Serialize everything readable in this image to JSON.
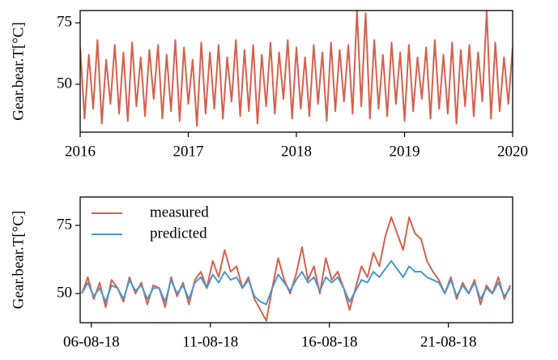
{
  "chart_data": [
    {
      "type": "line",
      "y_label": "Gear.bear.T[°C]",
      "x": [
        2016.0,
        2016.04,
        2016.08,
        2016.12,
        2016.16,
        2016.2,
        2016.24,
        2016.28,
        2016.32,
        2016.36,
        2016.4,
        2016.44,
        2016.48,
        2016.52,
        2016.56,
        2016.6,
        2016.64,
        2016.68,
        2016.72,
        2016.76,
        2016.8,
        2016.84,
        2016.88,
        2016.92,
        2016.96,
        2017.0,
        2017.04,
        2017.08,
        2017.12,
        2017.16,
        2017.2,
        2017.24,
        2017.28,
        2017.32,
        2017.36,
        2017.4,
        2017.44,
        2017.48,
        2017.52,
        2017.56,
        2017.6,
        2017.64,
        2017.68,
        2017.72,
        2017.76,
        2017.8,
        2017.84,
        2017.88,
        2017.92,
        2017.96,
        2018.0,
        2018.04,
        2018.08,
        2018.12,
        2018.16,
        2018.2,
        2018.24,
        2018.28,
        2018.32,
        2018.36,
        2018.4,
        2018.44,
        2018.48,
        2018.52,
        2018.56,
        2018.6,
        2018.64,
        2018.68,
        2018.72,
        2018.76,
        2018.8,
        2018.84,
        2018.88,
        2018.92,
        2018.96,
        2019.0,
        2019.04,
        2019.08,
        2019.12,
        2019.16,
        2019.2,
        2019.24,
        2019.28,
        2019.32,
        2019.36,
        2019.4,
        2019.44,
        2019.48,
        2019.52,
        2019.56,
        2019.6,
        2019.64,
        2019.68,
        2019.72,
        2019.76,
        2019.8,
        2019.84,
        2019.88,
        2019.92,
        2019.96,
        2020.0
      ],
      "series": [
        {
          "color": "#d6604d",
          "values": [
            65,
            36,
            62,
            40,
            68,
            34,
            60,
            42,
            66,
            38,
            63,
            35,
            67,
            41,
            61,
            37,
            64,
            44,
            66,
            36,
            62,
            39,
            68,
            35,
            65,
            42,
            60,
            33,
            67,
            38,
            63,
            40,
            66,
            36,
            61,
            43,
            68,
            37,
            64,
            39,
            66,
            34,
            62,
            41,
            67,
            38,
            63,
            44,
            68,
            36,
            65,
            40,
            61,
            37,
            66,
            42,
            63,
            35,
            67,
            39,
            64,
            43,
            66,
            38,
            80,
            41,
            79,
            36,
            68,
            40,
            62,
            37,
            67,
            42,
            63,
            35,
            66,
            39,
            61,
            44,
            65,
            36,
            68,
            40,
            62,
            38,
            67,
            34,
            64,
            41,
            66,
            37,
            63,
            43,
            80,
            36,
            67,
            39,
            61,
            42,
            65
          ]
        }
      ],
      "xlim": [
        2016,
        2020
      ],
      "xticks": [
        2016,
        2017,
        2018,
        2019,
        2020
      ],
      "ylim": [
        30.5,
        80
      ],
      "yticks": [
        50,
        75
      ]
    },
    {
      "type": "line",
      "y_label": "Gear.bear.T[°C]",
      "x": [
        5.6,
        5.85,
        6.1,
        6.35,
        6.6,
        6.85,
        7.1,
        7.35,
        7.6,
        7.85,
        8.1,
        8.35,
        8.6,
        8.85,
        9.1,
        9.35,
        9.6,
        9.85,
        10.1,
        10.35,
        10.6,
        10.85,
        11.1,
        11.35,
        11.6,
        11.85,
        12.1,
        12.35,
        12.6,
        12.85,
        13.1,
        13.35,
        13.6,
        13.85,
        14.1,
        14.35,
        14.6,
        14.85,
        15.1,
        15.35,
        15.6,
        15.85,
        16.1,
        16.35,
        16.6,
        16.85,
        17.1,
        17.35,
        17.6,
        17.85,
        18.1,
        18.35,
        18.6,
        18.85,
        19.1,
        19.35,
        19.6,
        19.85,
        20.1,
        20.35,
        20.6,
        20.85,
        21.1,
        21.35,
        21.6,
        21.85,
        22.1,
        22.35,
        22.6,
        22.85,
        23.1,
        23.35,
        23.6
      ],
      "series": [
        {
          "name": "measured",
          "color": "#d6604d",
          "values": [
            50,
            56,
            48,
            54,
            45,
            55,
            52,
            47,
            56,
            50,
            54,
            46,
            53,
            52,
            45,
            56,
            49,
            54,
            46,
            55,
            58,
            52,
            62,
            56,
            66,
            58,
            60,
            52,
            56,
            48,
            44,
            40,
            52,
            63,
            55,
            50,
            57,
            67,
            55,
            60,
            50,
            63,
            55,
            58,
            52,
            44,
            52,
            60,
            56,
            65,
            60,
            71,
            78,
            72,
            66,
            78,
            72,
            70,
            62,
            58,
            55,
            50,
            56,
            48,
            54,
            50,
            55,
            46,
            53,
            50,
            56,
            48,
            53
          ]
        },
        {
          "name": "predicted",
          "color": "#4a98c9",
          "values": [
            50,
            54,
            49,
            52,
            47,
            53,
            52,
            48,
            55,
            51,
            53,
            48,
            52,
            52,
            47,
            55,
            50,
            53,
            48,
            54,
            56,
            52,
            57,
            54,
            58,
            55,
            56,
            52,
            55,
            49,
            47,
            46,
            52,
            57,
            54,
            51,
            55,
            58,
            54,
            56,
            51,
            56,
            54,
            56,
            52,
            47,
            51,
            55,
            54,
            58,
            56,
            59,
            62,
            59,
            56,
            60,
            58,
            58,
            56,
            55,
            54,
            50,
            55,
            49,
            53,
            50,
            54,
            48,
            52,
            50,
            54,
            49,
            52
          ]
        }
      ],
      "xlim": [
        5.53,
        23.7
      ],
      "xticks": [
        {
          "value": 6,
          "label": "06-08-18"
        },
        {
          "value": 11,
          "label": "11-08-18"
        },
        {
          "value": 16,
          "label": "16-08-18"
        },
        {
          "value": 21,
          "label": "21-08-18"
        }
      ],
      "ylim": [
        39.3,
        85.4
      ],
      "yticks": [
        50,
        75
      ],
      "legend": "upper-left"
    }
  ]
}
